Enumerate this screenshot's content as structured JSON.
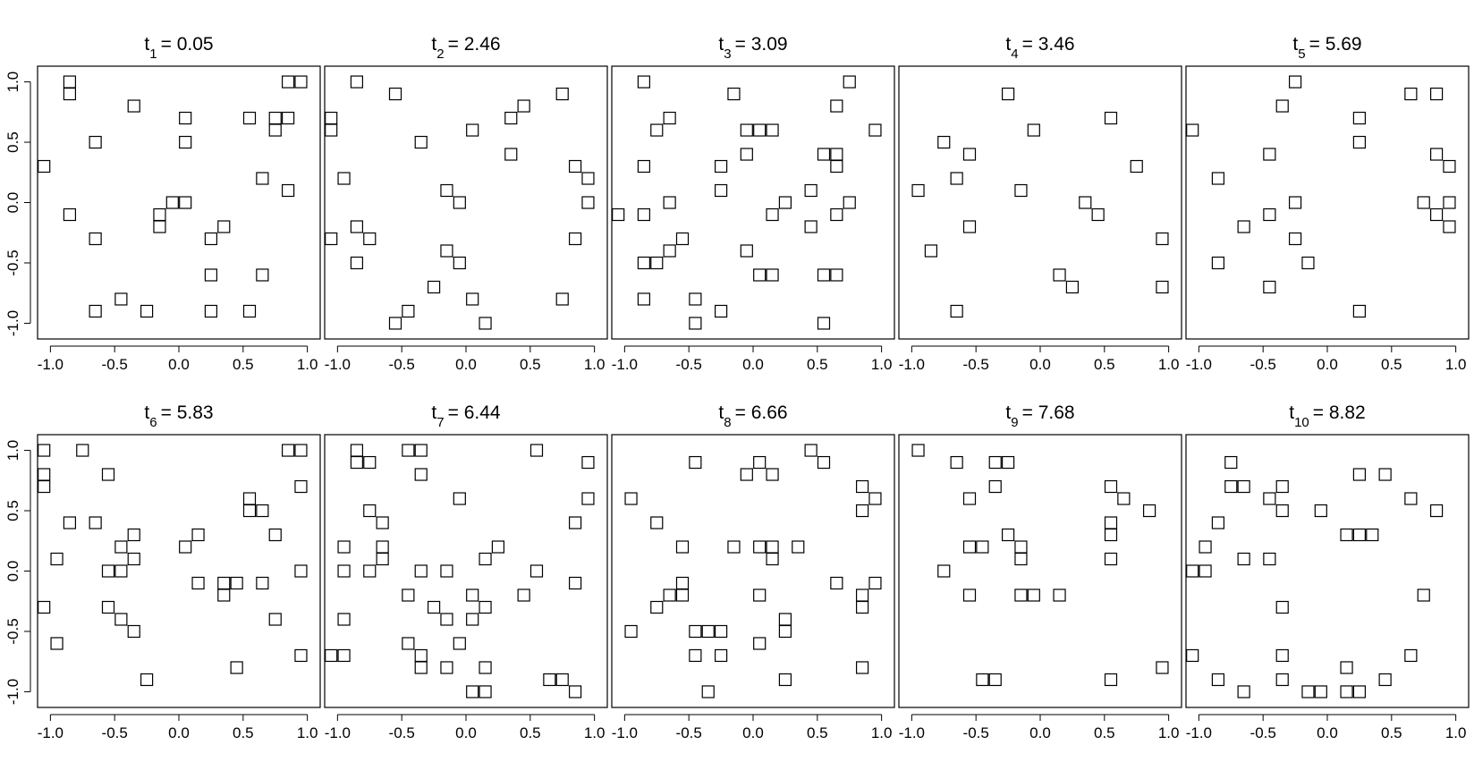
{
  "chart_data": [
    {
      "type": "scatter",
      "title": "t",
      "title_subscript": "1",
      "title_rest": "= 0.05",
      "color": "#000000",
      "marker": "square",
      "x": [
        -0.85,
        -0.85,
        0.85,
        0.95,
        -0.35,
        0.05,
        0.55,
        0.75,
        0.85,
        0.75,
        -0.65,
        0.05,
        -1.05,
        0.65,
        0.85,
        -0.85,
        -0.05,
        0.05,
        -0.15,
        -0.15,
        0.35,
        0.25,
        -0.65,
        0.25,
        0.65,
        -0.45,
        -0.65,
        -0.25,
        0.25,
        0.55
      ],
      "values": [
        1,
        0.9,
        1,
        1,
        0.8,
        0.7,
        0.7,
        0.7,
        0.7,
        0.6,
        0.5,
        0.5,
        0.3,
        0.2,
        0.1,
        -0.1,
        0,
        0,
        -0.1,
        -0.2,
        -0.2,
        -0.3,
        -0.3,
        -0.6,
        -0.6,
        -0.8,
        -0.9,
        -0.9,
        -0.9,
        -0.9
      ],
      "xlim": [
        -1.1,
        1.1
      ],
      "ylim": [
        -1.13,
        1.13
      ],
      "xticks": [
        {
          "value": -1,
          "label": "-1.0"
        },
        -0.5,
        {
          "value": 0,
          "label": "0.0"
        },
        0.5,
        {
          "value": 1,
          "label": "1.0"
        }
      ],
      "yticks": [
        {
          "value": -1,
          "label": "-1.0"
        },
        -0.5,
        {
          "value": 0,
          "label": "0.0"
        },
        0.5,
        {
          "value": 1,
          "label": "1.0"
        }
      ]
    },
    {
      "type": "scatter",
      "title": "t",
      "title_subscript": "2",
      "title_rest": "= 2.46",
      "color": "#000000",
      "marker": "square",
      "x": [
        -0.85,
        -0.55,
        0.75,
        0.45,
        0.35,
        -1.05,
        -1.05,
        0.05,
        -0.35,
        0.35,
        0.85,
        0.95,
        -0.95,
        -0.15,
        -0.05,
        0.95,
        -0.85,
        -0.75,
        -1.05,
        0.85,
        -0.15,
        -0.05,
        -0.85,
        -0.25,
        0.05,
        0.75,
        -0.45,
        -0.55,
        0.15
      ],
      "values": [
        1,
        0.9,
        0.9,
        0.8,
        0.7,
        0.7,
        0.6,
        0.6,
        0.5,
        0.4,
        0.3,
        0.2,
        0.2,
        0.1,
        0,
        0,
        -0.2,
        -0.3,
        -0.3,
        -0.3,
        -0.4,
        -0.5,
        -0.5,
        -0.7,
        -0.8,
        -0.8,
        -0.9,
        -1,
        -1
      ],
      "xlim": [
        -1.1,
        1.1
      ],
      "ylim": [
        -1.13,
        1.13
      ],
      "xticks": [
        {
          "value": -1,
          "label": "-1.0"
        },
        -0.5,
        {
          "value": 0,
          "label": "0.0"
        },
        0.5,
        {
          "value": 1,
          "label": "1.0"
        }
      ]
    },
    {
      "type": "scatter",
      "title": "t",
      "title_subscript": "3",
      "title_rest": "= 3.09",
      "color": "#000000",
      "marker": "square",
      "x": [
        -0.85,
        0.75,
        -0.15,
        0.65,
        -0.65,
        -0.75,
        -0.05,
        0.05,
        0.15,
        0.95,
        -0.05,
        0.55,
        0.65,
        0.65,
        -0.85,
        -0.25,
        -0.25,
        0.45,
        0.25,
        0.75,
        -0.65,
        -1.05,
        -0.85,
        0.15,
        0.65,
        -0.55,
        0.45,
        -0.65,
        -0.05,
        -0.85,
        -0.75,
        0.05,
        0.15,
        0.55,
        0.65,
        -0.85,
        -0.45,
        -0.25,
        -0.45,
        0.55
      ],
      "values": [
        1,
        1,
        0.9,
        0.8,
        0.7,
        0.6,
        0.6,
        0.6,
        0.6,
        0.6,
        0.4,
        0.4,
        0.4,
        0.3,
        0.3,
        0.3,
        0.1,
        0.1,
        0,
        0,
        0,
        -0.1,
        -0.1,
        -0.1,
        -0.1,
        -0.3,
        -0.2,
        -0.4,
        -0.4,
        -0.5,
        -0.5,
        -0.6,
        -0.6,
        -0.6,
        -0.6,
        -0.8,
        -0.8,
        -0.9,
        -1,
        -1
      ],
      "xlim": [
        -1.1,
        1.1
      ],
      "ylim": [
        -1.13,
        1.13
      ],
      "xticks": [
        {
          "value": -1,
          "label": "-1.0"
        },
        -0.5,
        {
          "value": 0,
          "label": "0.0"
        },
        0.5,
        {
          "value": 1,
          "label": "1.0"
        }
      ]
    },
    {
      "type": "scatter",
      "title": "t",
      "title_subscript": "4",
      "title_rest": "= 3.46",
      "color": "#000000",
      "marker": "square",
      "x": [
        -0.25,
        0.55,
        -0.05,
        -0.75,
        -0.55,
        0.75,
        -0.65,
        -0.95,
        -0.15,
        0.35,
        0.45,
        -0.55,
        0.95,
        -0.85,
        0.15,
        0.25,
        0.95,
        -0.65
      ],
      "values": [
        0.9,
        0.7,
        0.6,
        0.5,
        0.4,
        0.3,
        0.2,
        0.1,
        0.1,
        0,
        -0.1,
        -0.2,
        -0.3,
        -0.4,
        -0.6,
        -0.7,
        -0.7,
        -0.9
      ],
      "xlim": [
        -1.1,
        1.1
      ],
      "ylim": [
        -1.13,
        1.13
      ],
      "xticks": [
        {
          "value": -1,
          "label": "-1.0"
        },
        -0.5,
        {
          "value": 0,
          "label": "0.0"
        },
        0.5,
        {
          "value": 1,
          "label": "1.0"
        }
      ]
    },
    {
      "type": "scatter",
      "title": "t",
      "title_subscript": "5",
      "title_rest": "= 5.69",
      "color": "#000000",
      "marker": "square",
      "x": [
        -0.25,
        0.65,
        0.85,
        -0.35,
        0.25,
        -1.05,
        0.25,
        -0.45,
        0.85,
        0.95,
        -0.85,
        -0.25,
        0.75,
        0.95,
        -0.45,
        0.85,
        0.95,
        -0.65,
        -0.25,
        -0.85,
        -0.15,
        -0.45,
        0.25
      ],
      "values": [
        1,
        0.9,
        0.9,
        0.8,
        0.7,
        0.6,
        0.5,
        0.4,
        0.4,
        0.3,
        0.2,
        0,
        0,
        0,
        -0.1,
        -0.1,
        -0.2,
        -0.2,
        -0.3,
        -0.5,
        -0.5,
        -0.7,
        -0.9
      ],
      "xlim": [
        -1.1,
        1.1
      ],
      "ylim": [
        -1.13,
        1.13
      ],
      "xticks": [
        {
          "value": -1,
          "label": "-1.0"
        },
        -0.5,
        {
          "value": 0,
          "label": "0.0"
        },
        0.5,
        {
          "value": 1,
          "label": "1.0"
        }
      ]
    },
    {
      "type": "scatter",
      "title": "t",
      "title_subscript": "6",
      "title_rest": "= 5.83",
      "color": "#000000",
      "marker": "square",
      "x": [
        -1.05,
        -0.75,
        0.85,
        0.95,
        -1.05,
        -1.05,
        -0.55,
        0.95,
        0.55,
        0.55,
        0.65,
        -0.85,
        -0.65,
        -0.35,
        0.15,
        0.75,
        -0.45,
        0.05,
        -0.35,
        -0.95,
        -0.55,
        -0.45,
        0.95,
        0.15,
        0.35,
        0.45,
        0.65,
        0.35,
        -0.55,
        -1.05,
        -0.45,
        0.75,
        -0.35,
        -0.95,
        0.95,
        0.45,
        -0.25
      ],
      "values": [
        1,
        1,
        1,
        1,
        0.8,
        0.7,
        0.8,
        0.7,
        0.6,
        0.5,
        0.5,
        0.4,
        0.4,
        0.3,
        0.3,
        0.3,
        0.2,
        0.2,
        0.1,
        0.1,
        0,
        0,
        0,
        -0.1,
        -0.1,
        -0.1,
        -0.1,
        -0.2,
        -0.3,
        -0.3,
        -0.4,
        -0.4,
        -0.5,
        -0.6,
        -0.7,
        -0.8,
        -0.9
      ],
      "xlim": [
        -1.1,
        1.1
      ],
      "ylim": [
        -1.13,
        1.13
      ],
      "xticks": [
        {
          "value": -1,
          "label": "-1.0"
        },
        -0.5,
        {
          "value": 0,
          "label": "0.0"
        },
        0.5,
        {
          "value": 1,
          "label": "1.0"
        }
      ],
      "yticks": [
        {
          "value": -1,
          "label": "-1.0"
        },
        -0.5,
        {
          "value": 0,
          "label": "0.0"
        },
        0.5,
        {
          "value": 1,
          "label": "1.0"
        }
      ]
    },
    {
      "type": "scatter",
      "title": "t",
      "title_subscript": "7",
      "title_rest": "= 6.44",
      "color": "#000000",
      "marker": "square",
      "x": [
        -0.85,
        -0.45,
        -0.35,
        0.55,
        -0.85,
        -0.75,
        0.95,
        -0.35,
        -0.75,
        -0.05,
        0.95,
        -0.65,
        0.85,
        -0.95,
        -0.65,
        0.25,
        -0.65,
        0.15,
        -0.95,
        -0.75,
        -0.35,
        -0.15,
        0.55,
        0.85,
        -0.45,
        0.05,
        0.45,
        -0.25,
        0.15,
        -0.15,
        0.05,
        -0.95,
        -0.45,
        -0.05,
        -1.05,
        -0.95,
        -0.35,
        -0.35,
        -0.15,
        0.15,
        0.65,
        0.75,
        0.85,
        0.05,
        0.15
      ],
      "values": [
        1,
        1,
        1,
        1,
        0.9,
        0.9,
        0.9,
        0.8,
        0.5,
        0.6,
        0.6,
        0.4,
        0.4,
        0.2,
        0.2,
        0.2,
        0.1,
        0.1,
        0,
        0,
        0,
        0,
        0,
        -0.1,
        -0.2,
        -0.2,
        -0.2,
        -0.3,
        -0.3,
        -0.4,
        -0.4,
        -0.4,
        -0.6,
        -0.6,
        -0.7,
        -0.7,
        -0.7,
        -0.8,
        -0.8,
        -0.8,
        -0.9,
        -0.9,
        -1,
        -1,
        -1
      ],
      "xlim": [
        -1.1,
        1.1
      ],
      "ylim": [
        -1.13,
        1.13
      ],
      "xticks": [
        {
          "value": -1,
          "label": "-1.0"
        },
        -0.5,
        {
          "value": 0,
          "label": "0.0"
        },
        0.5,
        {
          "value": 1,
          "label": "1.0"
        }
      ]
    },
    {
      "type": "scatter",
      "title": "t",
      "title_subscript": "8",
      "title_rest": "= 6.66",
      "color": "#000000",
      "marker": "square",
      "x": [
        0.45,
        0.55,
        -0.45,
        0.05,
        -0.05,
        0.15,
        0.85,
        0.85,
        0.95,
        -0.95,
        -0.75,
        -0.55,
        -0.15,
        0.05,
        0.15,
        0.35,
        0.15,
        0.65,
        0.95,
        -0.55,
        -0.65,
        -0.55,
        0.05,
        0.85,
        -0.75,
        0.85,
        0.25,
        0.25,
        -0.95,
        -0.45,
        -0.35,
        -0.25,
        0.05,
        -0.45,
        -0.25,
        0.85,
        0.25,
        -0.35
      ],
      "values": [
        1,
        0.9,
        0.9,
        0.9,
        0.8,
        0.8,
        0.7,
        0.5,
        0.6,
        0.6,
        0.4,
        0.2,
        0.2,
        0.2,
        0.2,
        0.2,
        0.1,
        -0.1,
        -0.1,
        -0.1,
        -0.2,
        -0.2,
        -0.2,
        -0.2,
        -0.3,
        -0.3,
        -0.4,
        -0.5,
        -0.5,
        -0.5,
        -0.5,
        -0.5,
        -0.6,
        -0.7,
        -0.7,
        -0.8,
        -0.9,
        -1
      ],
      "xlim": [
        -1.1,
        1.1
      ],
      "ylim": [
        -1.13,
        1.13
      ],
      "xticks": [
        {
          "value": -1,
          "label": "-1.0"
        },
        -0.5,
        {
          "value": 0,
          "label": "0.0"
        },
        0.5,
        {
          "value": 1,
          "label": "1.0"
        }
      ]
    },
    {
      "type": "scatter",
      "title": "t",
      "title_subscript": "9",
      "title_rest": "= 7.68",
      "color": "#000000",
      "marker": "square",
      "x": [
        -0.95,
        -0.65,
        -0.35,
        -0.25,
        -0.35,
        0.55,
        0.65,
        -0.55,
        0.85,
        0.55,
        -0.25,
        0.55,
        -0.55,
        -0.45,
        -0.15,
        -0.15,
        0.55,
        -0.75,
        -0.55,
        -0.15,
        -0.05,
        0.15,
        0.95,
        -0.45,
        -0.35,
        0.55
      ],
      "values": [
        1,
        0.9,
        0.9,
        0.9,
        0.7,
        0.7,
        0.6,
        0.6,
        0.5,
        0.4,
        0.3,
        0.3,
        0.2,
        0.2,
        0.2,
        0.1,
        0.1,
        0,
        -0.2,
        -0.2,
        -0.2,
        -0.2,
        -0.8,
        -0.9,
        -0.9,
        -0.9
      ],
      "xlim": [
        -1.1,
        1.1
      ],
      "ylim": [
        -1.13,
        1.13
      ],
      "xticks": [
        {
          "value": -1,
          "label": "-1.0"
        },
        -0.5,
        {
          "value": 0,
          "label": "0.0"
        },
        0.5,
        {
          "value": 1,
          "label": "1.0"
        }
      ]
    },
    {
      "type": "scatter",
      "title": "t",
      "title_subscript": "10",
      "title_rest": "= 8.82",
      "color": "#000000",
      "marker": "square",
      "x": [
        -0.75,
        -0.75,
        -0.65,
        -0.35,
        0.25,
        0.45,
        -0.45,
        -0.35,
        0.65,
        0.85,
        -0.05,
        -0.85,
        0.15,
        0.25,
        0.35,
        -0.95,
        -0.65,
        -0.45,
        -1.05,
        -0.95,
        0.75,
        -0.35,
        -1.05,
        -0.35,
        0.65,
        0.15,
        -0.85,
        -0.35,
        0.45,
        -0.65,
        -0.15,
        -0.05,
        0.15,
        0.25
      ],
      "values": [
        0.9,
        0.7,
        0.7,
        0.7,
        0.8,
        0.8,
        0.6,
        0.5,
        0.6,
        0.5,
        0.5,
        0.4,
        0.3,
        0.3,
        0.3,
        0.2,
        0.1,
        0.1,
        0,
        0,
        -0.2,
        -0.3,
        -0.7,
        -0.7,
        -0.7,
        -0.8,
        -0.9,
        -0.9,
        -0.9,
        -1,
        -1,
        -1,
        -1,
        -1
      ],
      "xlim": [
        -1.1,
        1.1
      ],
      "ylim": [
        -1.13,
        1.13
      ],
      "xticks": [
        {
          "value": -1,
          "label": "-1.0"
        },
        -0.5,
        {
          "value": 0,
          "label": "0.0"
        },
        0.5,
        {
          "value": 1,
          "label": "1.0"
        }
      ]
    }
  ]
}
